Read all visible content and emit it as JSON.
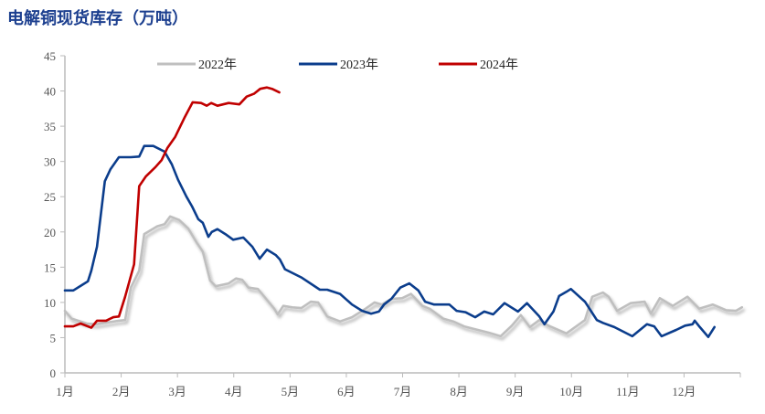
{
  "chart_data": {
    "type": "line",
    "title": "电解铜现货库存（万吨）",
    "xlabel": "",
    "ylabel": "",
    "ylim": [
      0,
      45
    ],
    "yticks": [
      0,
      5,
      10,
      15,
      20,
      25,
      30,
      35,
      40,
      45
    ],
    "xticks": [
      "1月",
      "2月",
      "3月",
      "4月",
      "5月",
      "6月",
      "7月",
      "8月",
      "9月",
      "10月",
      "11月",
      "12月"
    ],
    "legend_position": "top",
    "x_unit": "months since Jan 1",
    "series": [
      {
        "name": "2022年",
        "color": "#bfbfbf",
        "points": [
          [
            0,
            8.8
          ],
          [
            0.12,
            7.7
          ],
          [
            0.39,
            7
          ],
          [
            0.55,
            6.9
          ],
          [
            0.96,
            7.4
          ],
          [
            1.07,
            7.5
          ],
          [
            1.17,
            12.1
          ],
          [
            1.32,
            14.5
          ],
          [
            1.41,
            19.7
          ],
          [
            1.64,
            20.8
          ],
          [
            1.77,
            21.1
          ],
          [
            1.87,
            22.2
          ],
          [
            2.03,
            21.7
          ],
          [
            2.19,
            20.5
          ],
          [
            2.34,
            18.5
          ],
          [
            2.45,
            17.2
          ],
          [
            2.58,
            13.1
          ],
          [
            2.68,
            12.3
          ],
          [
            2.91,
            12.7
          ],
          [
            3.04,
            13.4
          ],
          [
            3.15,
            13.2
          ],
          [
            3.26,
            12.1
          ],
          [
            3.43,
            11.9
          ],
          [
            3.72,
            9.1
          ],
          [
            3.78,
            8.3
          ],
          [
            3.88,
            9.5
          ],
          [
            4.04,
            9.3
          ],
          [
            4.2,
            9.2
          ],
          [
            4.37,
            10.1
          ],
          [
            4.5,
            10
          ],
          [
            4.66,
            8
          ],
          [
            4.89,
            7.3
          ],
          [
            5.1,
            7.9
          ],
          [
            5.34,
            9.1
          ],
          [
            5.5,
            10
          ],
          [
            5.63,
            9.7
          ],
          [
            5.8,
            10.5
          ],
          [
            5.99,
            10.6
          ],
          [
            6.15,
            11.2
          ],
          [
            6.35,
            9.5
          ],
          [
            6.48,
            9.1
          ],
          [
            6.72,
            7.7
          ],
          [
            6.9,
            7.3
          ],
          [
            7.09,
            6.6
          ],
          [
            7.29,
            6.2
          ],
          [
            7.53,
            5.7
          ],
          [
            7.74,
            5.2
          ],
          [
            7.94,
            6.7
          ],
          [
            8.1,
            8.2
          ],
          [
            8.26,
            6.5
          ],
          [
            8.43,
            7.5
          ],
          [
            8.59,
            6.7
          ],
          [
            8.91,
            5.6
          ],
          [
            9.24,
            7.5
          ],
          [
            9.37,
            10.8
          ],
          [
            9.56,
            11.4
          ],
          [
            9.66,
            10.8
          ],
          [
            9.81,
            8.8
          ],
          [
            10.05,
            9.9
          ],
          [
            10.3,
            10.1
          ],
          [
            10.41,
            8.4
          ],
          [
            10.57,
            10.6
          ],
          [
            10.8,
            9.5
          ],
          [
            11.06,
            10.8
          ],
          [
            11.27,
            9.1
          ],
          [
            11.51,
            9.7
          ],
          [
            11.75,
            8.9
          ],
          [
            11.92,
            8.8
          ],
          [
            12.03,
            9.3
          ]
        ]
      },
      {
        "name": "2023年",
        "color": "#0b3d8c",
        "points": [
          [
            0,
            11.7
          ],
          [
            0.15,
            11.7
          ],
          [
            0.31,
            12.5
          ],
          [
            0.41,
            13
          ],
          [
            0.47,
            14.5
          ],
          [
            0.57,
            17.9
          ],
          [
            0.71,
            27.2
          ],
          [
            0.81,
            28.9
          ],
          [
            0.96,
            30.6
          ],
          [
            1.17,
            30.6
          ],
          [
            1.32,
            30.7
          ],
          [
            1.41,
            32.2
          ],
          [
            1.57,
            32.2
          ],
          [
            1.77,
            31.4
          ],
          [
            1.9,
            29.6
          ],
          [
            2.01,
            27.4
          ],
          [
            2.16,
            25
          ],
          [
            2.26,
            23.6
          ],
          [
            2.37,
            21.8
          ],
          [
            2.45,
            21.3
          ],
          [
            2.55,
            19.3
          ],
          [
            2.61,
            20
          ],
          [
            2.71,
            20.4
          ],
          [
            2.87,
            19.6
          ],
          [
            2.99,
            18.9
          ],
          [
            3.17,
            19.2
          ],
          [
            3.33,
            17.9
          ],
          [
            3.46,
            16.2
          ],
          [
            3.59,
            17.5
          ],
          [
            3.75,
            16.7
          ],
          [
            3.82,
            16.1
          ],
          [
            3.91,
            14.7
          ],
          [
            4.21,
            13.5
          ],
          [
            4.53,
            11.8
          ],
          [
            4.66,
            11.8
          ],
          [
            4.89,
            11.2
          ],
          [
            5.1,
            9.7
          ],
          [
            5.28,
            8.8
          ],
          [
            5.44,
            8.4
          ],
          [
            5.58,
            8.7
          ],
          [
            5.67,
            9.7
          ],
          [
            5.8,
            10.5
          ],
          [
            5.96,
            12.1
          ],
          [
            6.12,
            12.7
          ],
          [
            6.28,
            11.7
          ],
          [
            6.4,
            10.1
          ],
          [
            6.56,
            9.7
          ],
          [
            6.83,
            9.7
          ],
          [
            6.96,
            8.8
          ],
          [
            7.12,
            8.6
          ],
          [
            7.29,
            7.9
          ],
          [
            7.45,
            8.7
          ],
          [
            7.61,
            8.3
          ],
          [
            7.81,
            9.9
          ],
          [
            8.05,
            8.7
          ],
          [
            8.21,
            9.9
          ],
          [
            8.43,
            8
          ],
          [
            8.52,
            6.9
          ],
          [
            8.68,
            8.7
          ],
          [
            8.78,
            10.9
          ],
          [
            8.91,
            11.5
          ],
          [
            8.99,
            11.9
          ],
          [
            9.24,
            10.1
          ],
          [
            9.45,
            7.5
          ],
          [
            9.56,
            7.1
          ],
          [
            9.76,
            6.5
          ],
          [
            10.08,
            5.2
          ],
          [
            10.34,
            6.9
          ],
          [
            10.47,
            6.6
          ],
          [
            10.6,
            5.2
          ],
          [
            10.86,
            6.1
          ],
          [
            11.02,
            6.7
          ],
          [
            11.15,
            6.9
          ],
          [
            11.19,
            7.4
          ],
          [
            11.28,
            6.5
          ],
          [
            11.43,
            5.1
          ],
          [
            11.54,
            6.5
          ]
        ]
      },
      {
        "name": "2024年",
        "color": "#c00000",
        "points": [
          [
            0,
            6.6
          ],
          [
            0.15,
            6.6
          ],
          [
            0.28,
            7
          ],
          [
            0.47,
            6.4
          ],
          [
            0.57,
            7.4
          ],
          [
            0.73,
            7.4
          ],
          [
            0.86,
            7.9
          ],
          [
            0.96,
            8
          ],
          [
            1.07,
            10.8
          ],
          [
            1.23,
            15.4
          ],
          [
            1.32,
            26.5
          ],
          [
            1.44,
            27.9
          ],
          [
            1.61,
            29.2
          ],
          [
            1.72,
            30.2
          ],
          [
            1.82,
            31.9
          ],
          [
            1.96,
            33.5
          ],
          [
            2.13,
            36.3
          ],
          [
            2.27,
            38.4
          ],
          [
            2.42,
            38.3
          ],
          [
            2.52,
            37.9
          ],
          [
            2.6,
            38.3
          ],
          [
            2.71,
            37.9
          ],
          [
            2.91,
            38.3
          ],
          [
            3.1,
            38.1
          ],
          [
            3.23,
            39.2
          ],
          [
            3.36,
            39.6
          ],
          [
            3.47,
            40.3
          ],
          [
            3.59,
            40.5
          ],
          [
            3.68,
            40.3
          ],
          [
            3.81,
            39.8
          ]
        ]
      }
    ]
  }
}
